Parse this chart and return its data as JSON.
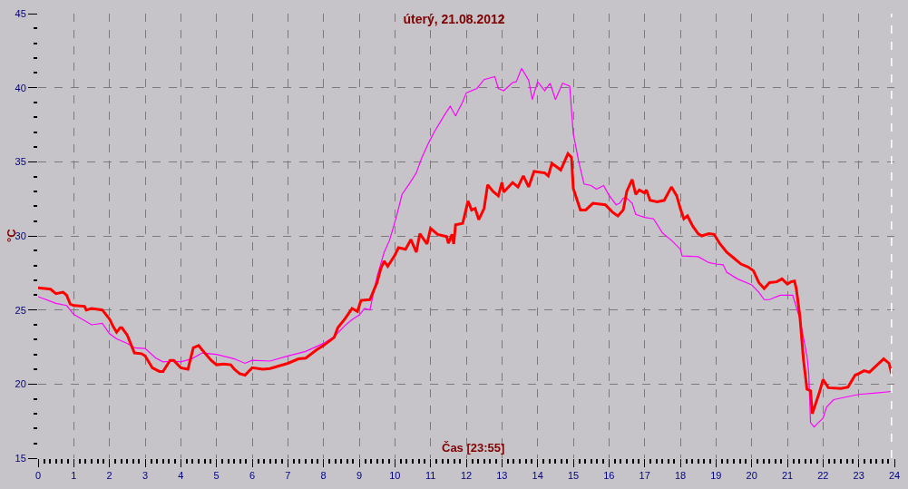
{
  "chart_data": {
    "type": "line",
    "title": "úterý, 21.08.2012",
    "xlabel": "Čas [23:55]",
    "ylabel": "°C",
    "xlim": [
      0,
      24
    ],
    "ylim": [
      15,
      45
    ],
    "xticks": [
      0,
      {
        "value": 0.17,
        "label": null
      },
      {
        "value": 0.33,
        "label": null
      },
      {
        "value": 0.5,
        "label": null
      },
      {
        "value": 0.67,
        "label": null
      },
      {
        "value": 0.83,
        "label": null
      },
      1,
      {
        "value": 1.17,
        "label": null
      },
      {
        "value": 1.33,
        "label": null
      },
      {
        "value": 1.5,
        "label": null
      },
      {
        "value": 1.67,
        "label": null
      },
      {
        "value": 1.83,
        "label": null
      },
      2,
      {
        "value": 2.17,
        "label": null
      },
      {
        "value": 2.33,
        "label": null
      },
      {
        "value": 2.5,
        "label": null
      },
      {
        "value": 2.67,
        "label": null
      },
      {
        "value": 2.83,
        "label": null
      },
      3,
      {
        "value": 3.17,
        "label": null
      },
      {
        "value": 3.33,
        "label": null
      },
      {
        "value": 3.5,
        "label": null
      },
      {
        "value": 3.67,
        "label": null
      },
      {
        "value": 3.83,
        "label": null
      },
      4,
      {
        "value": 4.17,
        "label": null
      },
      {
        "value": 4.33,
        "label": null
      },
      {
        "value": 4.5,
        "label": null
      },
      {
        "value": 4.67,
        "label": null
      },
      {
        "value": 4.83,
        "label": null
      },
      5,
      {
        "value": 5.17,
        "label": null
      },
      {
        "value": 5.33,
        "label": null
      },
      {
        "value": 5.5,
        "label": null
      },
      {
        "value": 5.67,
        "label": null
      },
      {
        "value": 5.83,
        "label": null
      },
      6,
      {
        "value": 6.17,
        "label": null
      },
      {
        "value": 6.33,
        "label": null
      },
      {
        "value": 6.5,
        "label": null
      },
      {
        "value": 6.67,
        "label": null
      },
      {
        "value": 6.83,
        "label": null
      },
      7,
      {
        "value": 7.17,
        "label": null
      },
      {
        "value": 7.33,
        "label": null
      },
      {
        "value": 7.5,
        "label": null
      },
      {
        "value": 7.67,
        "label": null
      },
      {
        "value": 7.83,
        "label": null
      },
      8,
      {
        "value": 8.17,
        "label": null
      },
      {
        "value": 8.33,
        "label": null
      },
      {
        "value": 8.5,
        "label": null
      },
      {
        "value": 8.67,
        "label": null
      },
      {
        "value": 8.83,
        "label": null
      },
      9,
      {
        "value": 9.17,
        "label": null
      },
      {
        "value": 9.33,
        "label": null
      },
      {
        "value": 9.5,
        "label": null
      },
      {
        "value": 9.67,
        "label": null
      },
      {
        "value": 9.83,
        "label": null
      },
      10,
      {
        "value": 10.17,
        "label": null
      },
      {
        "value": 10.33,
        "label": null
      },
      {
        "value": 10.5,
        "label": null
      },
      {
        "value": 10.67,
        "label": null
      },
      {
        "value": 10.83,
        "label": null
      },
      11,
      {
        "value": 11.17,
        "label": null
      },
      {
        "value": 11.33,
        "label": null
      },
      {
        "value": 11.5,
        "label": null
      },
      {
        "value": 11.67,
        "label": null
      },
      {
        "value": 11.83,
        "label": null
      },
      12,
      {
        "value": 12.17,
        "label": null
      },
      {
        "value": 12.33,
        "label": null
      },
      {
        "value": 12.5,
        "label": null
      },
      {
        "value": 12.67,
        "label": null
      },
      {
        "value": 12.83,
        "label": null
      },
      13,
      {
        "value": 13.17,
        "label": null
      },
      {
        "value": 13.33,
        "label": null
      },
      {
        "value": 13.5,
        "label": null
      },
      {
        "value": 13.67,
        "label": null
      },
      {
        "value": 13.83,
        "label": null
      },
      14,
      {
        "value": 14.17,
        "label": null
      },
      {
        "value": 14.33,
        "label": null
      },
      {
        "value": 14.5,
        "label": null
      },
      {
        "value": 14.67,
        "label": null
      },
      {
        "value": 14.83,
        "label": null
      },
      15,
      {
        "value": 15.17,
        "label": null
      },
      {
        "value": 15.33,
        "label": null
      },
      {
        "value": 15.5,
        "label": null
      },
      {
        "value": 15.67,
        "label": null
      },
      {
        "value": 15.83,
        "label": null
      },
      16,
      {
        "value": 16.17,
        "label": null
      },
      {
        "value": 16.33,
        "label": null
      },
      {
        "value": 16.5,
        "label": null
      },
      {
        "value": 16.67,
        "label": null
      },
      {
        "value": 16.83,
        "label": null
      },
      17,
      {
        "value": 17.17,
        "label": null
      },
      {
        "value": 17.33,
        "label": null
      },
      {
        "value": 17.5,
        "label": null
      },
      {
        "value": 17.67,
        "label": null
      },
      {
        "value": 17.83,
        "label": null
      },
      18,
      {
        "value": 18.17,
        "label": null
      },
      {
        "value": 18.33,
        "label": null
      },
      {
        "value": 18.5,
        "label": null
      },
      {
        "value": 18.67,
        "label": null
      },
      {
        "value": 18.83,
        "label": null
      },
      19,
      {
        "value": 19.17,
        "label": null
      },
      {
        "value": 19.33,
        "label": null
      },
      {
        "value": 19.5,
        "label": null
      },
      {
        "value": 19.67,
        "label": null
      },
      {
        "value": 19.83,
        "label": null
      },
      20,
      {
        "value": 20.17,
        "label": null
      },
      {
        "value": 20.33,
        "label": null
      },
      {
        "value": 20.5,
        "label": null
      },
      {
        "value": 20.67,
        "label": null
      },
      {
        "value": 20.83,
        "label": null
      },
      21,
      {
        "value": 21.17,
        "label": null
      },
      {
        "value": 21.33,
        "label": null
      },
      {
        "value": 21.5,
        "label": null
      },
      {
        "value": 21.67,
        "label": null
      },
      {
        "value": 21.83,
        "label": null
      },
      22,
      {
        "value": 22.17,
        "label": null
      },
      {
        "value": 22.33,
        "label": null
      },
      {
        "value": 22.5,
        "label": null
      },
      {
        "value": 22.67,
        "label": null
      },
      {
        "value": 22.83,
        "label": null
      },
      23,
      {
        "value": 23.17,
        "label": null
      },
      {
        "value": 23.33,
        "label": null
      },
      {
        "value": 23.5,
        "label": null
      },
      {
        "value": 23.67,
        "label": null
      },
      {
        "value": 23.83,
        "label": null
      },
      24
    ],
    "yticks": [
      15,
      {
        "value": 16,
        "label": null
      },
      {
        "value": 17,
        "label": null
      },
      {
        "value": 18,
        "label": null
      },
      {
        "value": 19,
        "label": null
      },
      20,
      {
        "value": 21,
        "label": null
      },
      {
        "value": 22,
        "label": null
      },
      {
        "value": 23,
        "label": null
      },
      {
        "value": 24,
        "label": null
      },
      25,
      {
        "value": 26,
        "label": null
      },
      {
        "value": 27,
        "label": null
      },
      {
        "value": 28,
        "label": null
      },
      {
        "value": 29,
        "label": null
      },
      30,
      {
        "value": 31,
        "label": null
      },
      {
        "value": 32,
        "label": null
      },
      {
        "value": 33,
        "label": null
      },
      {
        "value": 34,
        "label": null
      },
      35,
      {
        "value": 36,
        "label": null
      },
      {
        "value": 37,
        "label": null
      },
      {
        "value": 38,
        "label": null
      },
      {
        "value": 39,
        "label": null
      },
      40,
      {
        "value": 41,
        "label": null
      },
      {
        "value": 42,
        "label": null
      },
      {
        "value": 43,
        "label": null
      },
      {
        "value": 44,
        "label": null
      },
      45
    ],
    "grid": true,
    "ref_lines": [
      {
        "axis": "x",
        "value": 23.92,
        "color": "#ffffff",
        "line_style": "dashed"
      }
    ],
    "series": [
      {
        "color": "#ff0000",
        "x": [
          0,
          0.35,
          0.5,
          0.7,
          0.8,
          0.9,
          1.0,
          1.3,
          1.35,
          1.5,
          1.8,
          1.9,
          2.0,
          2.1,
          2.2,
          2.3,
          2.35,
          2.5,
          2.7,
          2.9,
          3.0,
          3.2,
          3.4,
          3.5,
          3.7,
          3.8,
          4.0,
          4.2,
          4.35,
          4.5,
          4.6,
          4.85,
          5.0,
          5.2,
          5.4,
          5.5,
          5.65,
          5.8,
          6.0,
          6.3,
          6.5,
          7.0,
          7.3,
          7.5,
          7.8,
          8.0,
          8.3,
          8.4,
          8.6,
          8.8,
          8.95,
          9.05,
          9.3,
          9.5,
          9.6,
          9.7,
          9.8,
          10.0,
          10.1,
          10.3,
          10.45,
          10.6,
          10.7,
          10.9,
          11.0,
          11.2,
          11.45,
          11.5,
          11.6,
          11.65,
          11.7,
          11.9,
          12.05,
          12.15,
          12.25,
          12.35,
          12.5,
          12.6,
          12.75,
          12.9,
          13.0,
          13.05,
          13.3,
          13.45,
          13.6,
          13.75,
          13.9,
          14.2,
          14.3,
          14.4,
          14.65,
          14.85,
          14.95,
          15.0,
          15.2,
          15.35,
          15.55,
          15.9,
          16.1,
          16.25,
          16.4,
          16.5,
          16.65,
          16.75,
          16.85,
          17.0,
          17.05,
          17.15,
          17.35,
          17.55,
          17.75,
          17.9,
          18.0,
          18.1,
          18.2,
          18.35,
          18.5,
          18.6,
          18.8,
          18.95,
          19.1,
          19.3,
          19.5,
          19.7,
          19.9,
          20.05,
          20.2,
          20.35,
          20.5,
          20.7,
          20.85,
          21.0,
          21.1,
          21.2,
          21.25,
          21.35,
          21.45,
          21.55,
          21.65,
          21.7,
          21.9,
          22.0,
          22.15,
          22.5,
          22.7,
          22.9,
          23.0,
          23.15,
          23.3,
          23.5,
          23.7,
          23.85,
          23.92
        ],
        "values": [
          26.5,
          26.4,
          26.1,
          26.2,
          26.0,
          25.4,
          25.3,
          25.25,
          25.0,
          25.1,
          25.0,
          24.7,
          24.4,
          23.9,
          23.5,
          23.8,
          23.8,
          23.3,
          22.1,
          22.05,
          21.9,
          21.1,
          20.85,
          20.85,
          21.6,
          21.6,
          21.1,
          21.0,
          22.45,
          22.6,
          22.3,
          21.6,
          21.3,
          21.35,
          21.3,
          21.0,
          20.7,
          20.6,
          21.1,
          21.0,
          21.05,
          21.4,
          21.7,
          21.75,
          22.3,
          22.6,
          23.15,
          23.8,
          24.4,
          25.1,
          24.9,
          25.65,
          25.7,
          26.85,
          27.75,
          28.3,
          27.95,
          28.7,
          29.2,
          29.1,
          29.75,
          28.9,
          30.15,
          29.45,
          30.5,
          30.1,
          29.95,
          29.5,
          30.1,
          29.45,
          30.75,
          30.85,
          32.35,
          31.75,
          31.85,
          31.1,
          31.85,
          33.45,
          33.0,
          32.7,
          33.6,
          32.95,
          33.6,
          33.3,
          34.05,
          33.3,
          34.35,
          34.25,
          34.05,
          34.9,
          34.45,
          35.55,
          35.3,
          33.2,
          31.75,
          31.75,
          32.2,
          32.1,
          31.6,
          31.35,
          31.75,
          33.0,
          33.8,
          32.8,
          33.1,
          32.9,
          33.1,
          32.4,
          32.3,
          32.4,
          33.3,
          32.7,
          31.85,
          31.15,
          31.35,
          30.65,
          30.15,
          30.0,
          30.15,
          30.1,
          29.5,
          28.9,
          28.5,
          28.1,
          27.9,
          27.65,
          26.85,
          26.45,
          26.85,
          26.9,
          27.1,
          26.75,
          26.9,
          26.95,
          26.45,
          24.6,
          21.7,
          19.65,
          19.55,
          18.0,
          19.45,
          20.3,
          19.75,
          19.7,
          19.8,
          20.6,
          20.7,
          20.9,
          20.8,
          21.25,
          21.7,
          21.4,
          20.7
        ]
      },
      {
        "color": "#ff00ff",
        "x": [
          0,
          0.5,
          0.8,
          1.0,
          1.5,
          1.8,
          2.0,
          2.2,
          2.5,
          2.7,
          3.0,
          3.3,
          3.5,
          3.8,
          4.0,
          4.3,
          4.6,
          5.0,
          5.5,
          5.8,
          6.0,
          6.5,
          7.0,
          7.5,
          8.0,
          8.3,
          8.6,
          8.8,
          9.0,
          9.15,
          9.3,
          9.5,
          9.7,
          9.85,
          10.05,
          10.2,
          10.4,
          10.6,
          10.75,
          10.95,
          11.1,
          11.4,
          11.55,
          11.7,
          11.9,
          12.0,
          12.3,
          12.5,
          12.8,
          12.9,
          13.05,
          13.3,
          13.4,
          13.55,
          13.75,
          13.85,
          14.0,
          14.2,
          14.35,
          14.5,
          14.7,
          14.9,
          15.0,
          15.15,
          15.3,
          15.5,
          15.65,
          15.85,
          16.0,
          16.2,
          16.3,
          16.4,
          16.5,
          16.65,
          16.75,
          17.0,
          17.25,
          17.5,
          17.75,
          18.0,
          18.05,
          18.5,
          18.8,
          19.0,
          19.2,
          19.3,
          19.6,
          20.0,
          20.2,
          20.35,
          20.5,
          20.8,
          21.15,
          21.35,
          21.55,
          21.6,
          21.65,
          21.75,
          21.85,
          22.0,
          22.1,
          22.3,
          22.6,
          23.0,
          23.5,
          23.92
        ],
        "values": [
          25.9,
          25.45,
          25.3,
          24.7,
          24.0,
          24.1,
          23.4,
          23.05,
          22.75,
          22.45,
          22.4,
          21.75,
          21.5,
          21.55,
          21.5,
          21.7,
          22.1,
          22.0,
          21.7,
          21.4,
          21.6,
          21.55,
          21.9,
          22.2,
          22.75,
          23.2,
          23.95,
          24.35,
          24.65,
          25.1,
          25.0,
          27.25,
          28.9,
          29.7,
          31.35,
          32.8,
          33.5,
          34.25,
          35.25,
          36.3,
          37.0,
          38.2,
          38.75,
          38.1,
          39.05,
          39.65,
          39.95,
          40.55,
          40.75,
          39.95,
          39.8,
          40.35,
          40.4,
          41.3,
          40.5,
          39.2,
          40.4,
          39.8,
          40.3,
          39.2,
          40.3,
          40.1,
          36.9,
          35.05,
          33.5,
          33.4,
          33.15,
          33.4,
          32.75,
          32.1,
          32.2,
          32.55,
          32.55,
          32.2,
          31.45,
          31.25,
          31.15,
          30.2,
          29.7,
          29.1,
          28.65,
          28.6,
          28.2,
          28.1,
          28.05,
          27.55,
          27.1,
          26.7,
          26.2,
          25.7,
          25.7,
          26.0,
          26.0,
          24.4,
          21.9,
          20.7,
          17.4,
          17.1,
          17.35,
          17.7,
          18.45,
          18.95,
          19.1,
          19.3,
          19.4,
          19.5
        ]
      }
    ]
  }
}
